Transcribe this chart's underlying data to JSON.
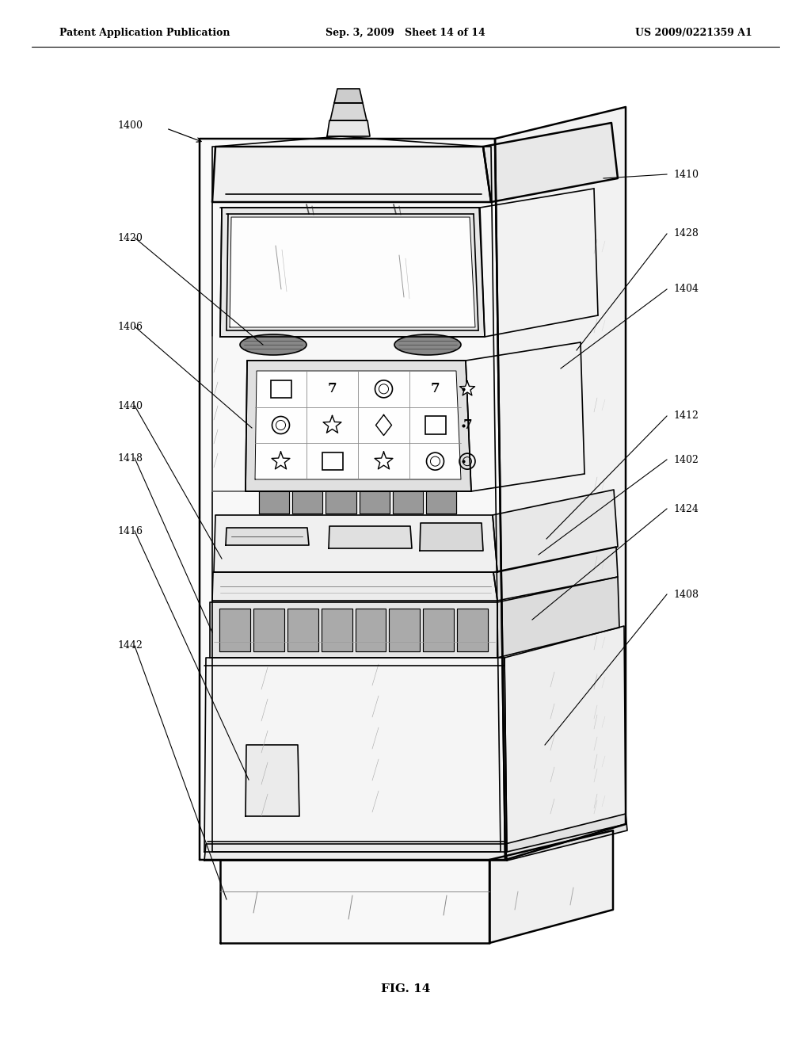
{
  "title_left": "Patent Application Publication",
  "title_center": "Sep. 3, 2009   Sheet 14 of 14",
  "title_right": "US 2009/0221359 A1",
  "fig_caption": "FIG. 14",
  "bg_color": "#ffffff",
  "line_color": "#000000",
  "header_fontsize": 9,
  "label_fontsize": 9,
  "caption_fontsize": 11
}
